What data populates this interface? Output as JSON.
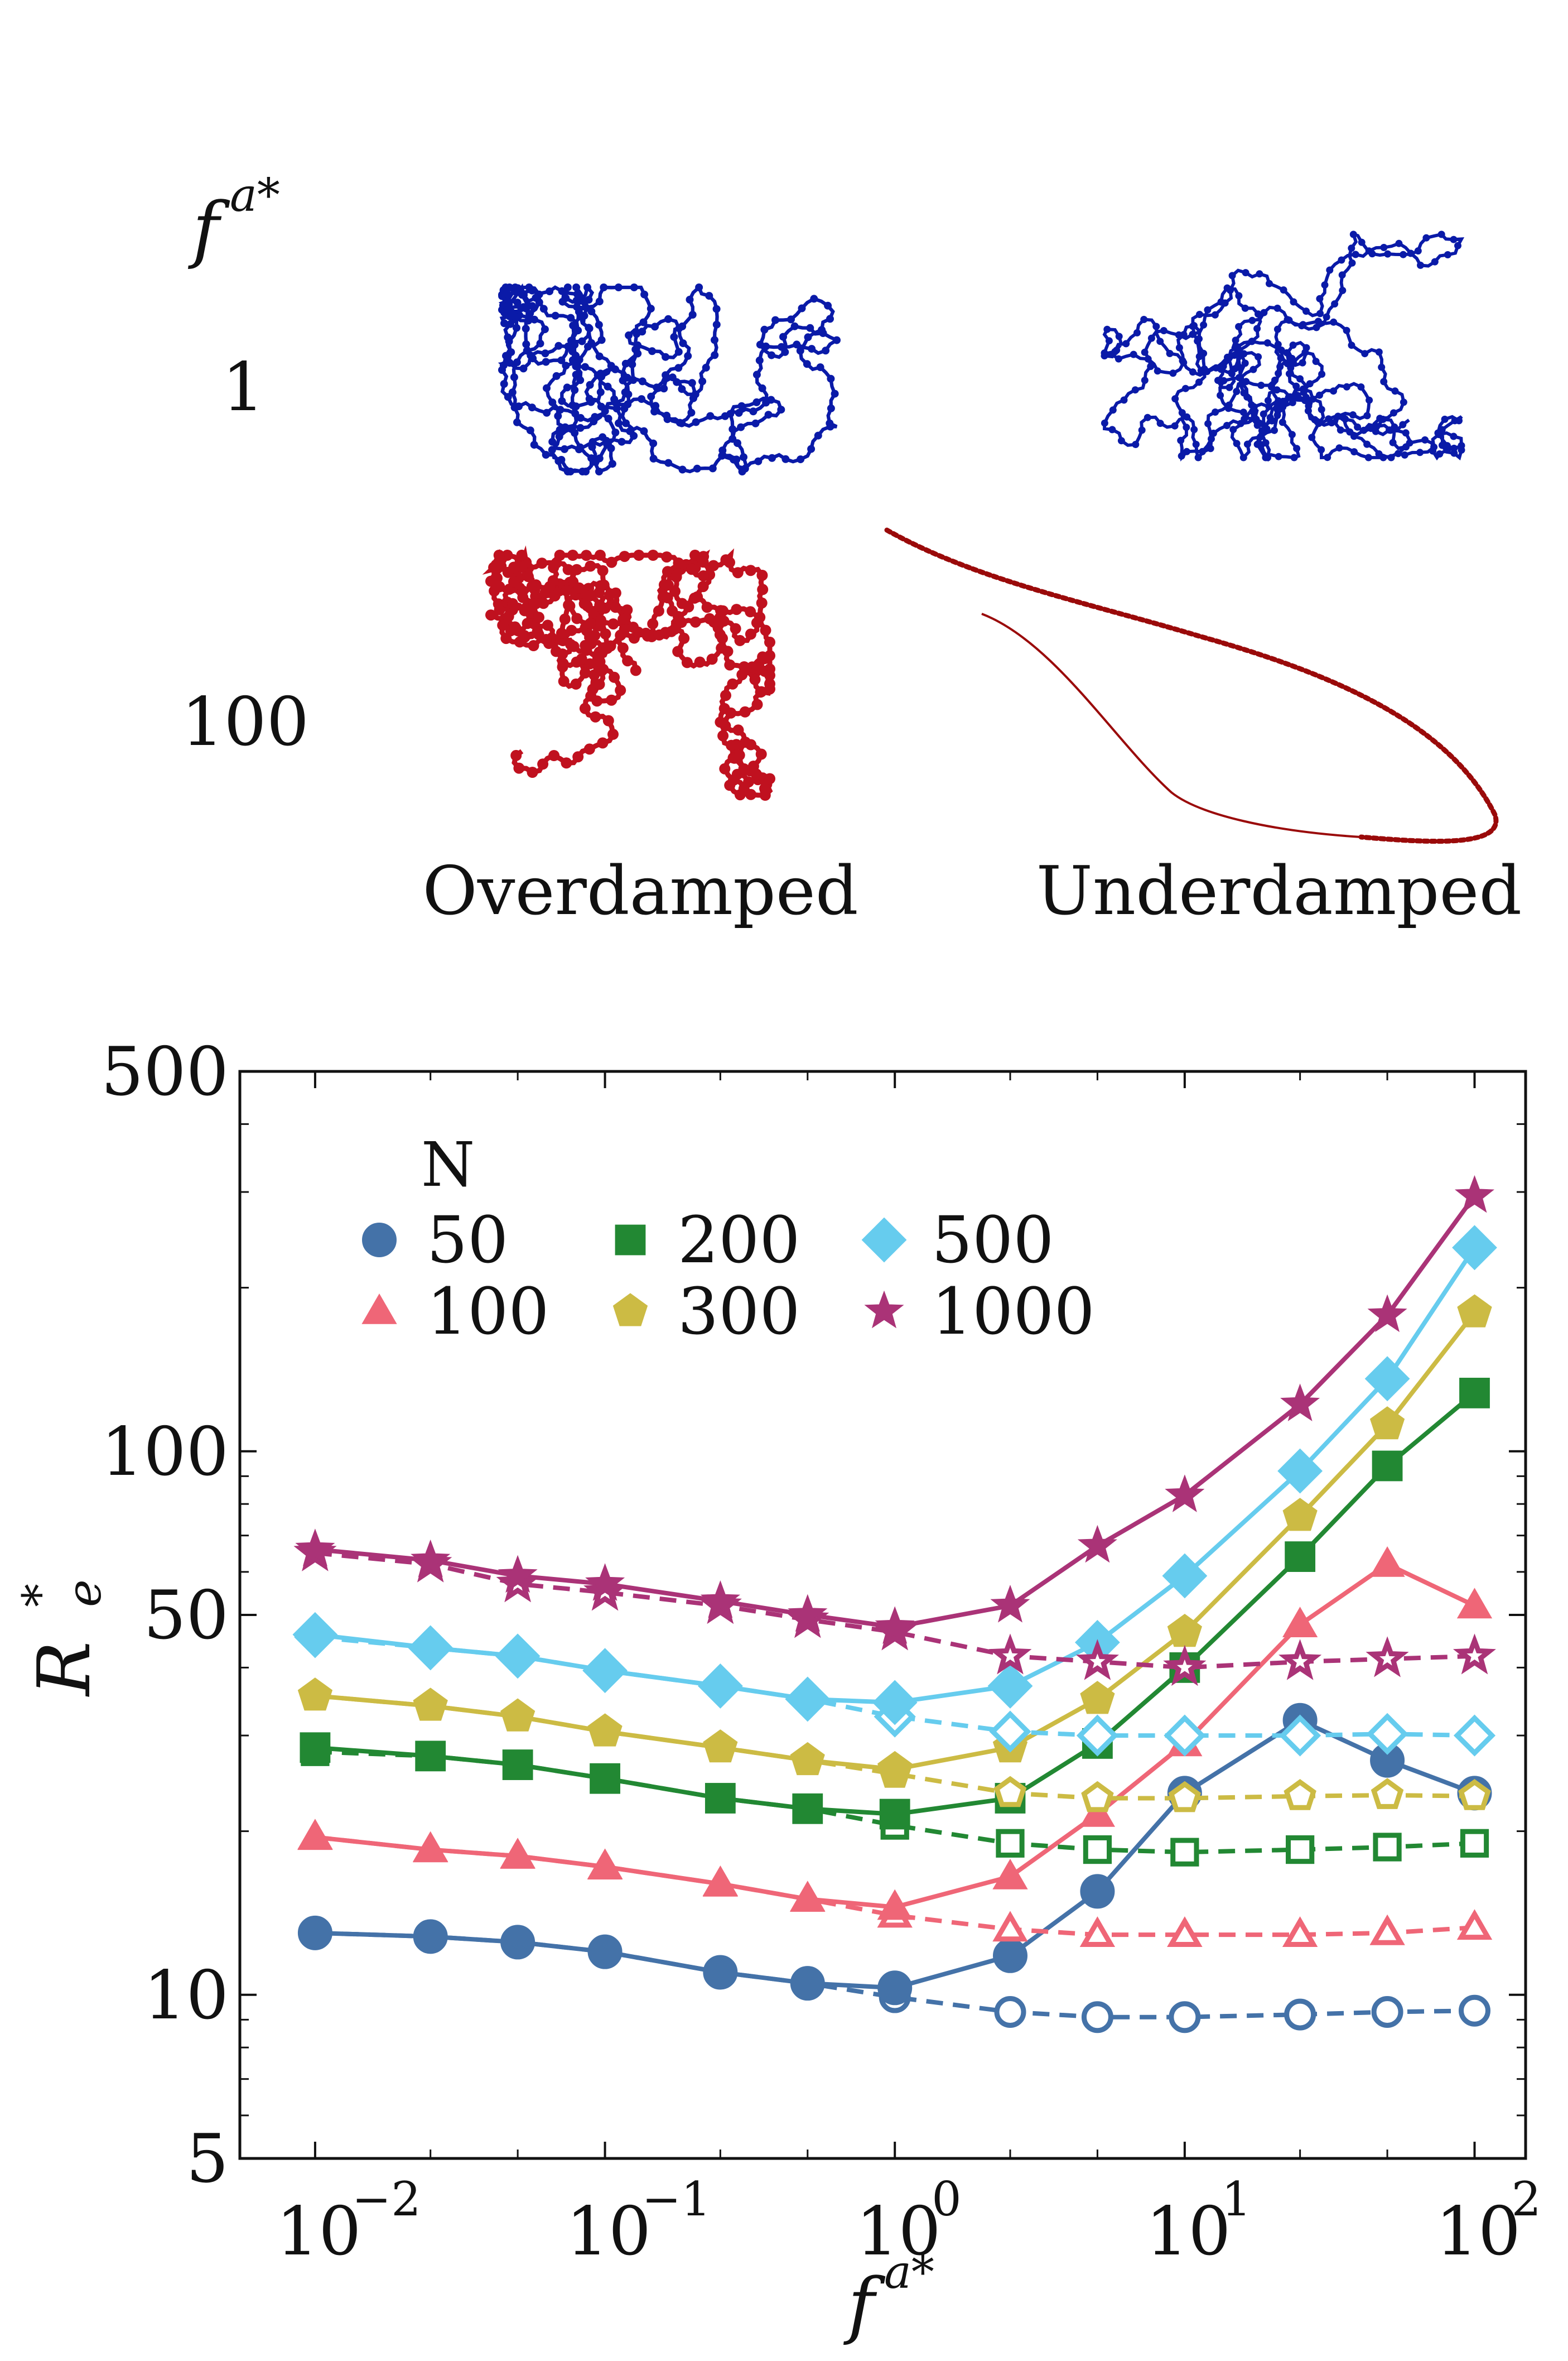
{
  "panel_top": {
    "row_header": "f",
    "row_header_superscript": "a*",
    "rows": [
      {
        "label": "1",
        "color": "#0a1aa8"
      },
      {
        "label": "100",
        "color": "#c0111f"
      }
    ],
    "columns": [
      "Overdamped",
      "Underdamped"
    ],
    "underdamped_high_color": "#9a0a0a"
  },
  "chart_data": {
    "type": "line",
    "xscale": "log",
    "yscale": "log",
    "x": [
      0.01,
      0.025,
      0.05,
      0.1,
      0.25,
      0.5,
      1,
      2.5,
      5,
      10,
      25,
      50,
      100
    ],
    "xlim": [
      0.0055,
      150
    ],
    "ylim": [
      5,
      500
    ],
    "xlabel": "f",
    "xlabel_superscript": "a*",
    "ylabel": "R",
    "ylabel_subscript": "e",
    "ylabel_superscript": "*",
    "x_ticks": [
      {
        "value": 0.01,
        "base": "10",
        "exp": "−2"
      },
      {
        "value": 0.1,
        "base": "10",
        "exp": "−1"
      },
      {
        "value": 1,
        "base": "10",
        "exp": "0"
      },
      {
        "value": 10,
        "base": "10",
        "exp": "1"
      },
      {
        "value": 100,
        "base": "10",
        "exp": "2"
      }
    ],
    "y_ticks": [
      {
        "value": 5,
        "label": "5"
      },
      {
        "value": 10,
        "label": "10"
      },
      {
        "value": 50,
        "label": "50"
      },
      {
        "value": 100,
        "label": "100"
      },
      {
        "value": 500,
        "label": "500"
      }
    ],
    "legend": {
      "title": "N",
      "position": "top-left"
    },
    "line_styles": {
      "solid": "filled markers, solid line",
      "dashed": "open markers, dashed line"
    },
    "series": [
      {
        "name": "50",
        "color": "#4472a8",
        "marker": "circle",
        "solid": [
          13.0,
          12.8,
          12.5,
          12.0,
          11.0,
          10.5,
          10.3,
          11.8,
          15.5,
          23.5,
          32.0,
          27.0,
          23.5
        ],
        "dashed": [
          13.0,
          12.8,
          12.5,
          12.0,
          11.0,
          10.5,
          9.9,
          9.3,
          9.1,
          9.1,
          9.2,
          9.3,
          9.35
        ]
      },
      {
        "name": "100",
        "color": "#ef6677",
        "marker": "triangle",
        "solid": [
          19.5,
          18.5,
          18.0,
          17.2,
          16.0,
          15.0,
          14.5,
          16.5,
          21.5,
          29.0,
          48.0,
          62.0,
          52.0
        ],
        "dashed": [
          19.5,
          18.5,
          18.0,
          17.2,
          16.0,
          15.0,
          14.0,
          13.2,
          12.9,
          12.9,
          12.9,
          13.0,
          13.3
        ]
      },
      {
        "name": "200",
        "color": "#228833",
        "marker": "square",
        "solid": [
          28.5,
          27.5,
          26.5,
          25.0,
          23.0,
          22.0,
          21.5,
          23.0,
          29.0,
          40.0,
          64.0,
          94.0,
          128.0
        ],
        "dashed": [
          28.0,
          27.5,
          26.5,
          25.0,
          23.0,
          22.0,
          20.5,
          19.0,
          18.5,
          18.3,
          18.5,
          18.7,
          19.0
        ]
      },
      {
        "name": "300",
        "color": "#ccbb44",
        "marker": "pentagon",
        "solid": [
          35.5,
          34.0,
          32.5,
          30.5,
          28.5,
          27.0,
          26.0,
          28.5,
          35.0,
          46.5,
          76.0,
          112.0,
          180.0
        ],
        "dashed": [
          35.5,
          34.0,
          32.5,
          30.5,
          28.5,
          27.0,
          25.5,
          23.5,
          23.0,
          23.0,
          23.2,
          23.3,
          23.2
        ]
      },
      {
        "name": "500",
        "color": "#66ccee",
        "marker": "diamond",
        "solid": [
          46.0,
          43.5,
          42.0,
          39.5,
          37.0,
          35.0,
          34.5,
          37.0,
          44.5,
          59.0,
          92.0,
          136.0,
          237.0
        ],
        "dashed": [
          45.5,
          43.5,
          42.0,
          39.5,
          37.0,
          35.0,
          32.5,
          30.5,
          30.0,
          30.0,
          30.0,
          30.2,
          30.0
        ]
      },
      {
        "name": "1000",
        "color": "#aa3377",
        "marker": "star",
        "solid": [
          66.0,
          63.0,
          59.0,
          57.0,
          53.0,
          50.0,
          47.5,
          52.0,
          67.0,
          83.0,
          122.0,
          178.0,
          295.0
        ],
        "dashed": [
          65.0,
          62.0,
          57.0,
          55.0,
          52.0,
          49.0,
          46.5,
          42.0,
          41.0,
          40.0,
          41.0,
          41.5,
          42.0
        ]
      }
    ]
  }
}
